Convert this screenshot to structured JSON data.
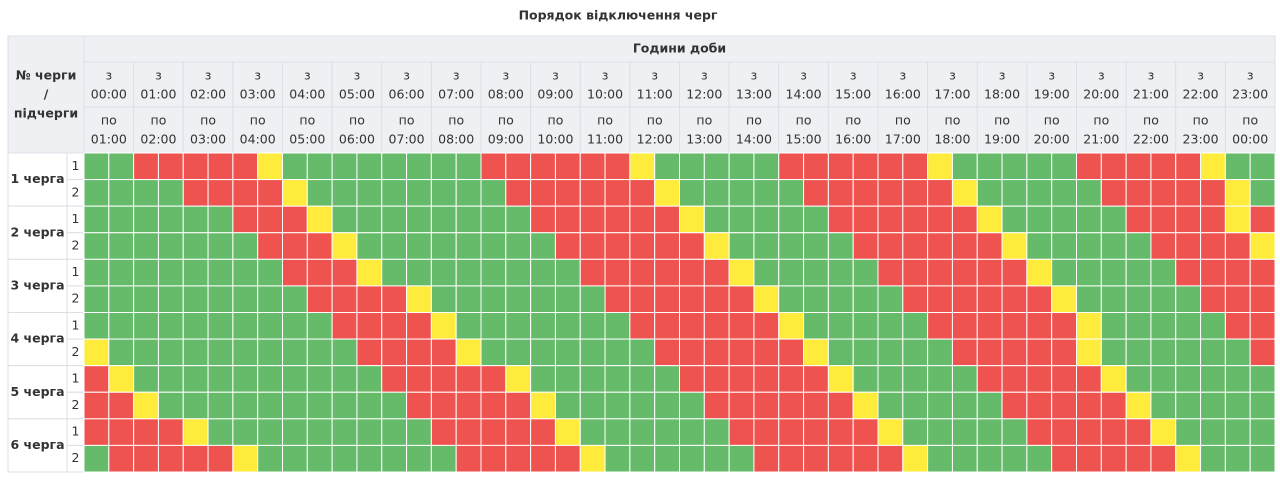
{
  "title": "Порядок відключення черг",
  "header": {
    "corner": [
      "№ черги",
      "/",
      "підчерги"
    ],
    "hours_title": "Години доби",
    "from_prefix": "з",
    "to_prefix": "по",
    "hours_from": [
      "00:00",
      "01:00",
      "02:00",
      "03:00",
      "04:00",
      "05:00",
      "06:00",
      "07:00",
      "08:00",
      "09:00",
      "10:00",
      "11:00",
      "12:00",
      "13:00",
      "14:00",
      "15:00",
      "16:00",
      "17:00",
      "18:00",
      "19:00",
      "20:00",
      "21:00",
      "22:00",
      "23:00"
    ],
    "hours_to": [
      "01:00",
      "02:00",
      "03:00",
      "04:00",
      "05:00",
      "06:00",
      "07:00",
      "08:00",
      "09:00",
      "10:00",
      "11:00",
      "12:00",
      "13:00",
      "14:00",
      "15:00",
      "16:00",
      "17:00",
      "18:00",
      "19:00",
      "20:00",
      "21:00",
      "22:00",
      "23:00",
      "00:00"
    ]
  },
  "palette": {
    "G": "#66bb6a",
    "R": "#ef5350",
    "Y": "#ffeb3b"
  },
  "queues": [
    {
      "label": "1 черга",
      "subqueues": [
        {
          "label": "1",
          "slots": "GGRRRRRYGGGGGGGGRRRRRRYGGGGGRRRRRRYGGGGGRRRRRYGG"
        },
        {
          "label": "2",
          "slots": "GGGGRRRRYGGGGGGGGRRRRRRYGGGGGRRRRRRYGGGGGRRRRRYG"
        }
      ]
    },
    {
      "label": "2 черга",
      "subqueues": [
        {
          "label": "1",
          "slots": "GGGGGGRRRYGGGGGGGGRRRRRRYGGGGGRRRRRRYGGGGGRRRRYR"
        },
        {
          "label": "2",
          "slots": "GGGGGGGRRRYGGGGGGGGRRRRRRYGGGGGRRRRRRYGGGGGRRRRY"
        }
      ]
    },
    {
      "label": "3 черга",
      "subqueues": [
        {
          "label": "1",
          "slots": "GGGGGGGGRRRYGGGGGGGGRRRRRRYGGGGGRRRRRRYGGGGGRRRR"
        },
        {
          "label": "2",
          "slots": "GGGGGGGGGRRRRYGGGGGGGRRRRRRYGGGGGRRRRRRYGGGGGRRR"
        }
      ]
    },
    {
      "label": "4 черга",
      "subqueues": [
        {
          "label": "1",
          "slots": "GGGGGGGGGGRRRRYGGGGGGGRRRRRRYGGGGGRRRRRRYGGGGGRR"
        },
        {
          "label": "2",
          "slots": "YGGGGGGGGGGRRRRYGGGGGGGRRRRRRYGGGGGRRRRRYGGGGGGR"
        }
      ]
    },
    {
      "label": "5 черга",
      "subqueues": [
        {
          "label": "1",
          "slots": "RYGGGGGGGGGGRRRRRYGGGGGGRRRRRRYGGGGGRRRRRYGGGGGG"
        },
        {
          "label": "2",
          "slots": "RRYGGGGGGGGGGRRRRRYGGGGGGRRRRRRYGGGGGRRRRRYGGGGG"
        }
      ]
    },
    {
      "label": "6 черга",
      "subqueues": [
        {
          "label": "1",
          "slots": "RRRRYGGGGGGGGGRRRRRYGGGGGGRRRRRRYGGGGGRRRRRYGGGG"
        },
        {
          "label": "2",
          "slots": "GRRRRRYGGGGGGGGRRRRRYGGGGGGRRRRRRYGGGGGRRRRRYGGG"
        }
      ]
    }
  ]
}
